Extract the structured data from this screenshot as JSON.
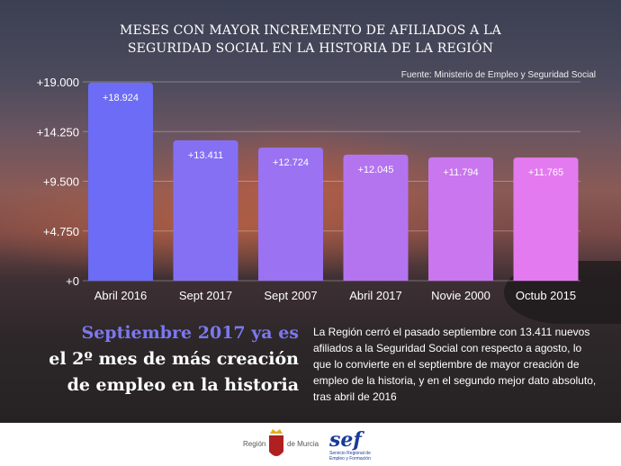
{
  "chart_data": {
    "type": "bar",
    "title_lines": [
      "MESES CON MAYOR INCREMENTO DE AFILIADOS A LA",
      "SEGURIDAD SOCIAL EN LA HISTORIA DE LA REGIÓN"
    ],
    "source": "Fuente: Ministerio de Empleo y Seguridad Social",
    "categories": [
      "Abril 2016",
      "Sept 2017",
      "Sept 2007",
      "Abril 2017",
      "Novie 2000",
      "Octub 2015"
    ],
    "values": [
      18924,
      13411,
      12724,
      12045,
      11794,
      11765
    ],
    "data_labels": [
      "+18.924",
      "+13.411",
      "+12.724",
      "+12.045",
      "+11.794",
      "+11.765"
    ],
    "yticks": [
      0,
      4750,
      9500,
      14250,
      19000
    ],
    "ytick_labels": [
      "+0",
      "+4.750",
      "+9.500",
      "+14.250",
      "+19.000"
    ],
    "ylim": [
      0,
      19000
    ],
    "grid": true,
    "colors": [
      "#6c6cf6",
      "#8570f4",
      "#9a72f2",
      "#b474f0",
      "#c976ef",
      "#e47af0"
    ]
  },
  "headline": {
    "highlight": "Septiembre 2017 ya es",
    "line2": "el 2º mes de más creación",
    "line3": "de empleo en la historia"
  },
  "body_text": "La Región cerró el pasado septiembre con 13.411 nuevos afiliados a la Seguridad Social con respecto a agosto, lo que lo convierte en el septiembre de mayor creación de empleo de la historia, y en el segundo mejor dato absoluto, tras abril de 2016",
  "footer": {
    "logo1_left": "Región",
    "logo1_right": "de Murcia",
    "logo2": "sef",
    "logo2_sub": "Servicio Regional de Empleo y Formación"
  }
}
